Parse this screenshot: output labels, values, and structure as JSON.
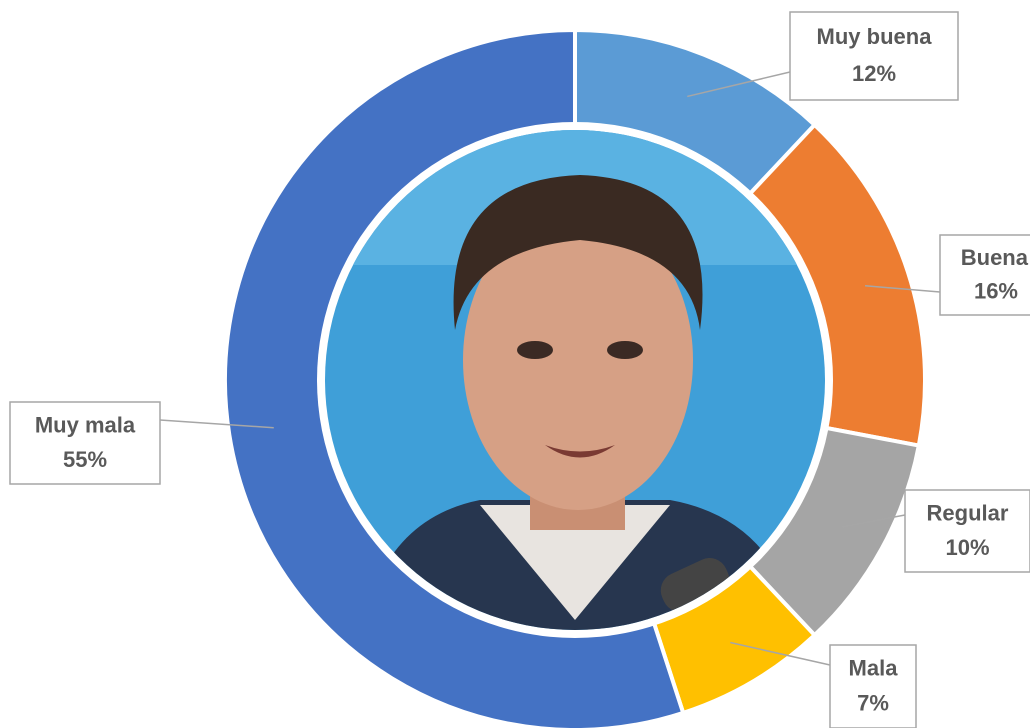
{
  "chart_data": {
    "type": "donut",
    "categories": [
      "Muy buena",
      "Buena",
      "Regular",
      "Mala",
      "Muy mala"
    ],
    "values": [
      12,
      16,
      10,
      7,
      55
    ],
    "value_labels": [
      "12%",
      "16%",
      "10%",
      "7%",
      "55%"
    ],
    "colors": [
      "#5b9bd5",
      "#ed7d31",
      "#a5a5a5",
      "#ffc000",
      "#4472c4"
    ]
  }
}
